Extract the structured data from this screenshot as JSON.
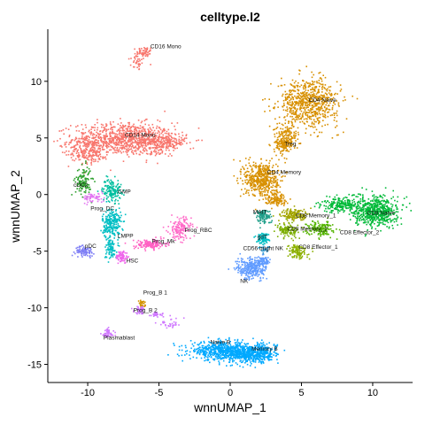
{
  "chart_data": {
    "type": "scatter",
    "title": "celltype.l2",
    "xlabel": "wnnUMAP_1",
    "ylabel": "wnnUMAP_2",
    "xlim": [
      -12.8,
      12.8
    ],
    "ylim": [
      -16.6,
      14.6
    ],
    "xticks": [
      -10,
      -5,
      0,
      5,
      10
    ],
    "yticks": [
      -15,
      -10,
      -5,
      0,
      5,
      10
    ],
    "grid": false,
    "legend": "none",
    "clusters": [
      {
        "name": "CD16 Mono",
        "color": "#F8766D",
        "label": [
          -5.6,
          12.9
        ],
        "blobs": [
          [
            -6.5,
            11.8,
            0.6,
            0.8,
            40
          ],
          [
            -6.0,
            12.6,
            0.5,
            0.4,
            50
          ]
        ]
      },
      {
        "name": "CD14 Mono",
        "color": "#F8766D",
        "label": [
          -7.4,
          5.1
        ],
        "blobs": [
          [
            -7.5,
            4.9,
            3.2,
            1.3,
            900
          ],
          [
            -10.0,
            3.8,
            1.2,
            1.0,
            200
          ],
          [
            -4.8,
            4.6,
            1.6,
            0.8,
            250
          ]
        ]
      },
      {
        "name": "cDC2",
        "color": "#2CA02C",
        "label": [
          -11.0,
          0.7
        ],
        "blobs": [
          [
            -10.3,
            1.2,
            0.5,
            1.2,
            120
          ]
        ]
      },
      {
        "name": "Prog_DC",
        "color": "#E377F2",
        "label": [
          -9.8,
          -1.4
        ],
        "blobs": [
          [
            -9.6,
            -0.3,
            0.7,
            0.4,
            60
          ]
        ]
      },
      {
        "name": "GMP",
        "color": "#00BFA0",
        "label": [
          -7.9,
          0.1
        ],
        "blobs": [
          [
            -8.3,
            0.4,
            0.6,
            0.9,
            150
          ]
        ]
      },
      {
        "name": "LMPP",
        "color": "#00BFC4",
        "label": [
          -7.9,
          -3.8
        ],
        "blobs": [
          [
            -8.3,
            -2.6,
            0.6,
            1.3,
            250
          ],
          [
            -8.4,
            -4.8,
            0.4,
            0.8,
            80
          ]
        ]
      },
      {
        "name": "pDC",
        "color": "#7F7FF5",
        "label": [
          -10.2,
          -4.7
        ],
        "blobs": [
          [
            -10.2,
            -5.0,
            0.6,
            0.4,
            90
          ]
        ]
      },
      {
        "name": "HSC",
        "color": "#EF67EB",
        "label": [
          -7.3,
          -6.0
        ],
        "blobs": [
          [
            -7.6,
            -5.5,
            0.4,
            0.5,
            80
          ]
        ]
      },
      {
        "name": "Prog_Mk",
        "color": "#FF61C3",
        "label": [
          -5.5,
          -4.3
        ],
        "blobs": [
          [
            -5.6,
            -4.4,
            1.0,
            0.4,
            150
          ]
        ]
      },
      {
        "name": "Prog_RBC",
        "color": "#FF6CC9",
        "label": [
          -3.2,
          -3.3
        ],
        "blobs": [
          [
            -3.5,
            -3.0,
            0.7,
            0.9,
            150
          ]
        ]
      },
      {
        "name": "Prog_B 1",
        "color": "#D39200",
        "label": [
          -6.1,
          -8.8
        ],
        "blobs": [
          [
            -6.2,
            -9.7,
            0.2,
            0.3,
            30
          ]
        ]
      },
      {
        "name": "Prog_B 2",
        "color": "#CF78FF",
        "label": [
          -6.8,
          -10.4
        ],
        "blobs": [
          [
            -6.3,
            -10.2,
            0.4,
            0.3,
            40
          ],
          [
            -5.2,
            -10.6,
            0.8,
            0.3,
            30
          ]
        ]
      },
      {
        "name": "Plasmablast",
        "color": "#CF78FF",
        "label": [
          -8.9,
          -12.8
        ],
        "blobs": [
          [
            -8.6,
            -12.3,
            0.4,
            0.4,
            50
          ],
          [
            -4.2,
            -11.4,
            0.9,
            0.4,
            30
          ]
        ]
      },
      {
        "name": "Naive B",
        "color": "#00A9FF",
        "label": [
          -1.4,
          -13.2
        ],
        "blobs": [
          [
            -0.5,
            -13.8,
            2.1,
            0.7,
            600
          ],
          [
            1.2,
            -14.2,
            1.5,
            0.6,
            300
          ]
        ]
      },
      {
        "name": "Memory B",
        "color": "#00A9FF",
        "label": [
          1.5,
          -13.8
        ],
        "blobs": [
          [
            2.3,
            -13.9,
            0.9,
            0.7,
            200
          ]
        ]
      },
      {
        "name": "CD4 Naive",
        "color": "#D89000",
        "label": [
          5.5,
          8.2
        ],
        "blobs": [
          [
            5.5,
            8.1,
            1.9,
            1.9,
            700
          ],
          [
            4.0,
            5.0,
            0.8,
            1.2,
            150
          ]
        ]
      },
      {
        "name": "Treg",
        "color": "#D89000",
        "label": [
          3.8,
          4.3
        ],
        "blobs": [
          [
            3.6,
            4.4,
            0.5,
            0.6,
            80
          ]
        ]
      },
      {
        "name": "CD4 Memory",
        "color": "#D89000",
        "label": [
          2.6,
          1.8
        ],
        "blobs": [
          [
            2.2,
            1.4,
            1.1,
            1.4,
            500
          ],
          [
            3.2,
            -0.4,
            0.7,
            0.5,
            120
          ]
        ]
      },
      {
        "name": "MAIT",
        "color": "#1F9E89",
        "label": [
          1.6,
          -1.7
        ],
        "blobs": [
          [
            2.3,
            -1.9,
            0.5,
            0.6,
            100
          ]
        ]
      },
      {
        "name": "gdT",
        "color": "#00BFC4",
        "label": [
          1.9,
          -3.9
        ],
        "blobs": [
          [
            2.3,
            -3.9,
            0.4,
            0.5,
            80
          ]
        ]
      },
      {
        "name": "CD56 bright NK",
        "color": "#3D9FD3",
        "label": [
          0.9,
          -4.9
        ],
        "blobs": [
          [
            2.4,
            -4.9,
            0.3,
            0.3,
            30
          ]
        ]
      },
      {
        "name": "NK",
        "color": "#619CFF",
        "label": [
          0.7,
          -7.8
        ],
        "blobs": [
          [
            1.5,
            -6.5,
            1.0,
            0.9,
            300
          ],
          [
            2.4,
            -5.9,
            0.4,
            0.4,
            60
          ]
        ]
      },
      {
        "name": "CD8 Memory_1",
        "color": "#A3A500",
        "label": [
          4.6,
          -2.0
        ],
        "blobs": [
          [
            4.5,
            -1.8,
            0.9,
            0.5,
            150
          ]
        ]
      },
      {
        "name": "CD8 Memory_2",
        "color": "#7CAE00",
        "label": [
          4.0,
          -3.2
        ],
        "blobs": [
          [
            4.1,
            -3.2,
            0.7,
            0.5,
            120
          ]
        ]
      },
      {
        "name": "CD8 Effector_1",
        "color": "#8CB000",
        "label": [
          4.8,
          -4.8
        ],
        "blobs": [
          [
            4.7,
            -5.0,
            0.6,
            0.6,
            120
          ]
        ]
      },
      {
        "name": "CD8 Effector_2",
        "color": "#53B400",
        "label": [
          7.7,
          -3.5
        ],
        "blobs": [
          [
            6.3,
            -3.0,
            0.8,
            0.6,
            150
          ]
        ]
      },
      {
        "name": "CD8 Naive",
        "color": "#00BA38",
        "label": [
          9.6,
          -1.8
        ],
        "blobs": [
          [
            10.2,
            -1.5,
            1.4,
            1.2,
            600
          ],
          [
            7.8,
            -0.9,
            1.2,
            0.6,
            200
          ]
        ]
      }
    ]
  }
}
